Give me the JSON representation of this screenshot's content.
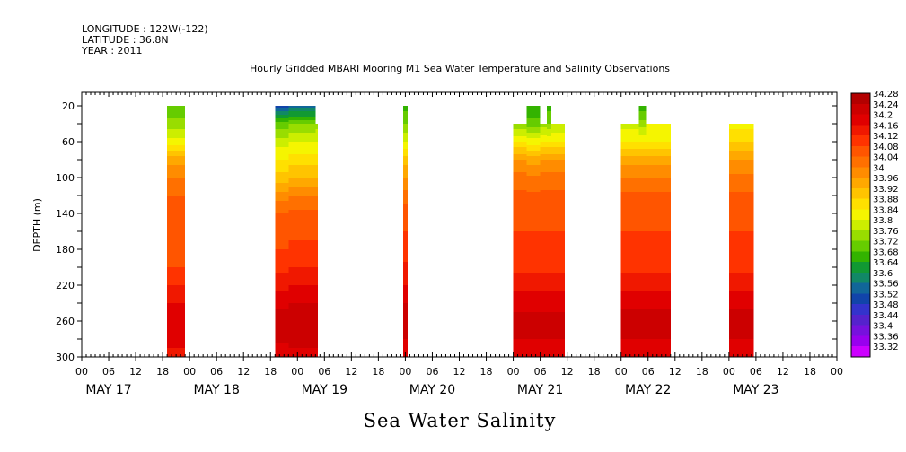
{
  "header": {
    "longitude": "LONGITUDE : 122W(-122)",
    "latitude": "LATITUDE : 36.8N",
    "year": "YEAR : 2011"
  },
  "footer_title": "Sea Water Salinity",
  "chart_data": {
    "type": "heatmap",
    "title": "Hourly Gridded MBARI Mooring M1 Sea Water Temperature and Salinity Observations",
    "xlabel": "",
    "ylabel": "DEPTH (m)",
    "x_unit": "hours since MAY 17 00",
    "xlim": [
      0,
      168
    ],
    "ylim": [
      300,
      5
    ],
    "y_ticks": [
      20,
      60,
      100,
      140,
      180,
      220,
      260,
      300
    ],
    "x_tick_labels": [
      "00",
      "06",
      "12",
      "18",
      "00",
      "06",
      "12",
      "18",
      "00",
      "06",
      "12",
      "18",
      "00",
      "06",
      "12",
      "18",
      "00",
      "06",
      "12",
      "18",
      "00",
      "06",
      "12",
      "18",
      "00",
      "06",
      "12",
      "18",
      "00"
    ],
    "day_labels": [
      "MAY 17",
      "MAY 18",
      "MAY 19",
      "MAY 20",
      "MAY 21",
      "MAY 22",
      "MAY 23"
    ],
    "colorbar": {
      "levels": [
        "34.28",
        "34.24",
        "34.2",
        "34.16",
        "34.12",
        "34.08",
        "34.04",
        "34",
        "33.96",
        "33.92",
        "33.88",
        "33.84",
        "33.8",
        "33.76",
        "33.72",
        "33.68",
        "33.64",
        "33.6",
        "33.56",
        "33.52",
        "33.48",
        "33.44",
        "33.4",
        "33.36",
        "33.32"
      ],
      "colors": [
        "#b30000",
        "#cc0000",
        "#e00000",
        "#f01800",
        "#ff3300",
        "#ff5500",
        "#ff7000",
        "#ff8c00",
        "#ffa800",
        "#ffc400",
        "#ffe000",
        "#f5f500",
        "#ccee00",
        "#99dd00",
        "#66cc00",
        "#33b300",
        "#119933",
        "#118866",
        "#116699",
        "#1144aa",
        "#3333cc",
        "#5522cc",
        "#7711dd",
        "#9900ee",
        "#cc00ff"
      ]
    },
    "profile_depths": [
      20,
      40,
      60,
      80,
      100,
      120,
      140,
      160,
      180,
      200,
      220,
      240,
      260,
      280,
      300
    ],
    "segments": [
      {
        "t0": 19,
        "t1": 23,
        "top": 20,
        "profile": [
          33.7,
          33.76,
          33.84,
          33.96,
          34.02,
          34.06,
          34.08,
          34.09,
          34.09,
          34.1,
          34.14,
          34.18,
          34.22,
          34.2,
          34.16
        ]
      },
      {
        "t0": 43,
        "t1": 46,
        "top": 20,
        "profile": [
          33.52,
          33.72,
          33.8,
          33.86,
          33.92,
          34.0,
          34.06,
          34.08,
          34.1,
          34.13,
          34.17,
          34.21,
          34.25,
          34.23,
          34.19
        ]
      },
      {
        "t0": 46,
        "t1": 52,
        "top": 20,
        "profile": [
          33.56,
          33.74,
          33.82,
          33.88,
          33.94,
          34.02,
          34.07,
          34.09,
          34.11,
          34.14,
          34.18,
          34.22,
          34.25,
          34.24,
          34.2
        ]
      },
      {
        "t0": 52,
        "t1": 52.5,
        "top": 40,
        "profile": [
          33.76,
          33.76,
          33.82,
          33.88,
          33.94,
          34.02,
          34.07,
          34.09,
          34.11,
          34.14,
          34.18,
          34.22,
          34.25,
          34.24,
          34.2
        ]
      },
      {
        "t0": 71.5,
        "t1": 72.5,
        "top": 20,
        "profile": [
          33.68,
          33.74,
          33.82,
          33.92,
          33.98,
          34.04,
          34.08,
          34.1,
          34.12,
          34.15,
          34.18,
          34.22,
          34.26,
          34.22,
          34.18
        ]
      },
      {
        "t0": 96,
        "t1": 99,
        "top": 40,
        "profile": [
          33.74,
          33.74,
          33.86,
          33.98,
          34.04,
          34.07,
          34.09,
          34.1,
          34.11,
          34.13,
          34.17,
          34.21,
          34.23,
          34.22,
          34.18
        ]
      },
      {
        "t0": 99,
        "t1": 102,
        "top": 20,
        "profile": [
          33.66,
          33.72,
          33.84,
          33.96,
          34.03,
          34.07,
          34.09,
          34.1,
          34.11,
          34.13,
          34.17,
          34.21,
          34.23,
          34.22,
          34.18
        ]
      },
      {
        "t0": 102,
        "t1": 103.5,
        "top": 40,
        "profile": [
          33.76,
          33.76,
          33.86,
          33.98,
          34.04,
          34.07,
          34.09,
          34.1,
          34.11,
          34.13,
          34.17,
          34.21,
          34.23,
          34.22,
          34.18
        ]
      },
      {
        "t0": 103.5,
        "t1": 104.5,
        "top": 20,
        "profile": [
          33.68,
          33.74,
          33.86,
          33.98,
          34.04,
          34.07,
          34.09,
          34.1,
          34.11,
          34.13,
          34.17,
          34.21,
          34.23,
          34.22,
          34.18
        ]
      },
      {
        "t0": 104.5,
        "t1": 107.5,
        "top": 40,
        "profile": [
          33.78,
          33.78,
          33.86,
          33.98,
          34.04,
          34.07,
          34.09,
          34.1,
          34.11,
          34.13,
          34.17,
          34.21,
          34.23,
          34.22,
          34.18
        ]
      },
      {
        "t0": 120,
        "t1": 124,
        "top": 40,
        "profile": [
          33.8,
          33.8,
          33.86,
          33.96,
          34.02,
          34.07,
          34.09,
          34.1,
          34.11,
          34.13,
          34.17,
          34.21,
          34.24,
          34.22,
          34.18
        ]
      },
      {
        "t0": 124,
        "t1": 125.5,
        "top": 20,
        "profile": [
          33.68,
          33.76,
          33.86,
          33.96,
          34.02,
          34.07,
          34.09,
          34.1,
          34.11,
          34.13,
          34.17,
          34.21,
          34.24,
          34.22,
          34.18
        ]
      },
      {
        "t0": 125.5,
        "t1": 131,
        "top": 40,
        "profile": [
          33.82,
          33.82,
          33.86,
          33.96,
          34.02,
          34.07,
          34.09,
          34.1,
          34.11,
          34.13,
          34.17,
          34.21,
          34.24,
          34.22,
          34.18
        ]
      },
      {
        "t0": 144,
        "t1": 149.5,
        "top": 40,
        "profile": [
          33.84,
          33.84,
          33.9,
          33.98,
          34.03,
          34.07,
          34.09,
          34.1,
          34.11,
          34.13,
          34.17,
          34.21,
          34.24,
          34.22,
          34.18
        ]
      }
    ]
  }
}
